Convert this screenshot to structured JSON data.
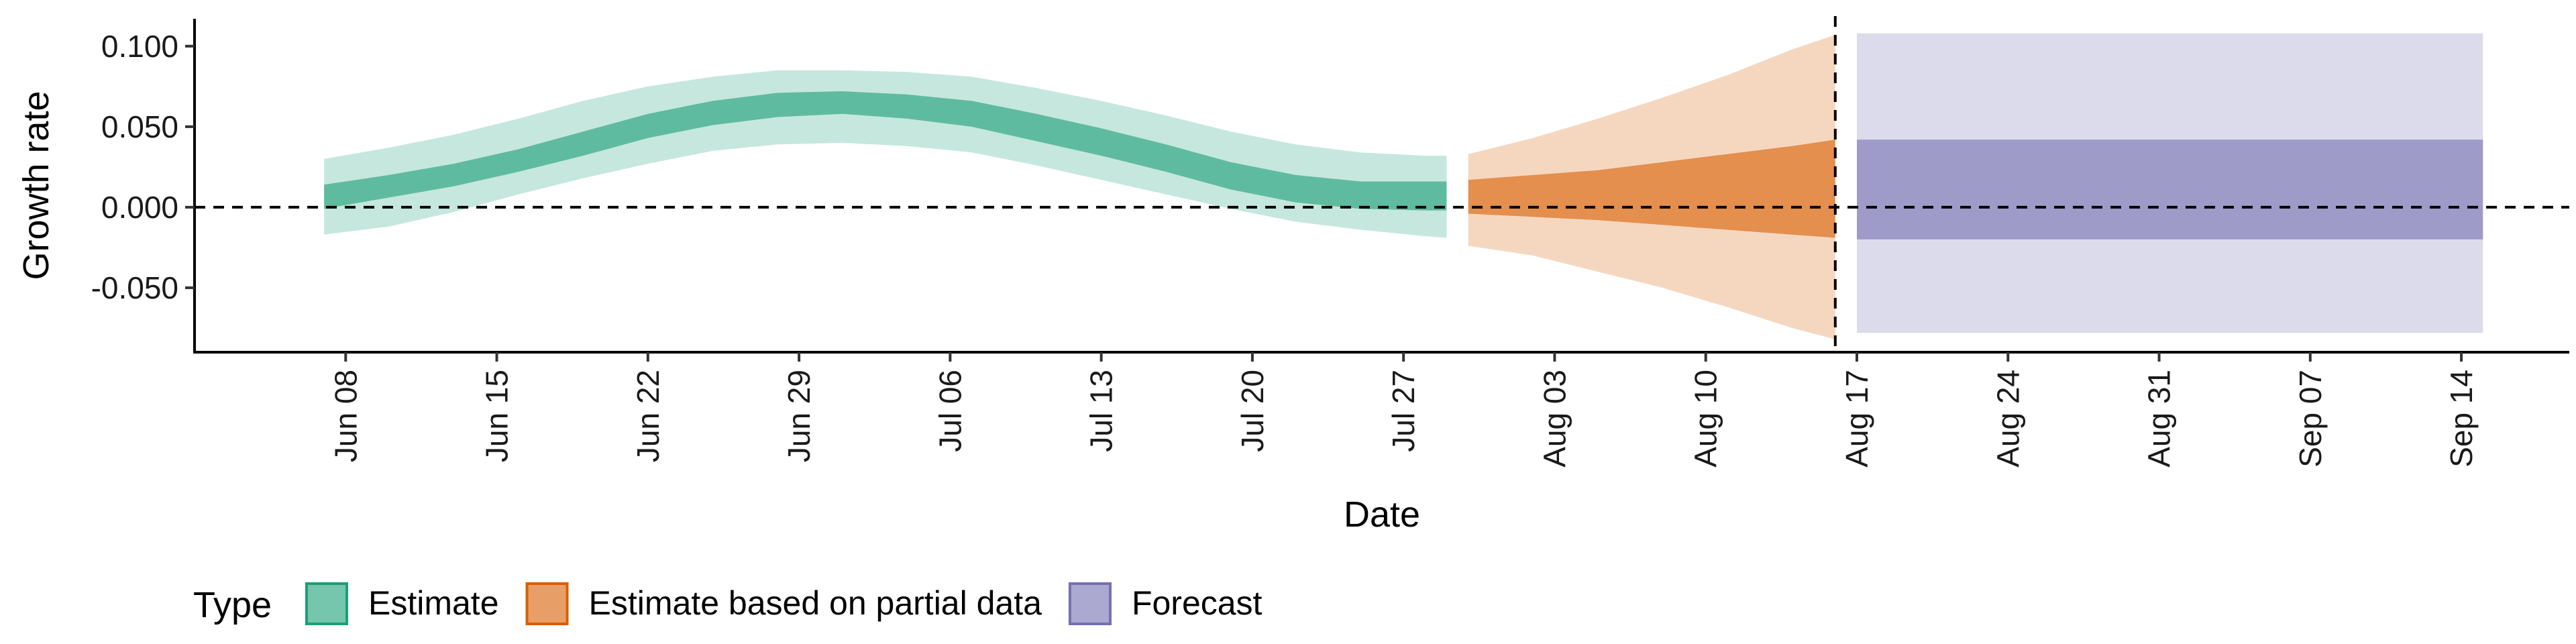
{
  "chart_data": {
    "type": "area",
    "ylabel": "Growth rate",
    "xlabel": "Date",
    "ylim": [
      -0.09,
      0.117
    ],
    "xlim": [
      "2021-06-01",
      "2021-09-19"
    ],
    "grid": false,
    "legend_position": "bottom-left",
    "legend_title": "Type",
    "y_ticks": [
      0.1,
      0.05,
      0.0,
      -0.05
    ],
    "y_tick_labels": [
      "0.100",
      "0.050",
      "0.000",
      "-0.050"
    ],
    "x_ticks": [
      "2021-06-08",
      "2021-06-15",
      "2021-06-22",
      "2021-06-29",
      "2021-07-06",
      "2021-07-13",
      "2021-07-20",
      "2021-07-27",
      "2021-08-03",
      "2021-08-10",
      "2021-08-17",
      "2021-08-24",
      "2021-08-31",
      "2021-09-07",
      "2021-09-14"
    ],
    "x_tick_labels": [
      "Jun 08",
      "Jun 15",
      "Jun 22",
      "Jun 29",
      "Jul 06",
      "Jul 13",
      "Jul 20",
      "Jul 27",
      "Aug 03",
      "Aug 10",
      "Aug 17",
      "Aug 24",
      "Aug 31",
      "Sep 07",
      "Sep 14"
    ],
    "reference_lines": {
      "horizontal_y": 0,
      "vertical_x": "2021-08-16"
    },
    "series": [
      {
        "name": "Estimate",
        "color": "#1b9e77",
        "x": [
          "2021-06-07",
          "2021-06-10",
          "2021-06-13",
          "2021-06-16",
          "2021-06-19",
          "2021-06-22",
          "2021-06-25",
          "2021-06-28",
          "2021-07-01",
          "2021-07-04",
          "2021-07-07",
          "2021-07-10",
          "2021-07-13",
          "2021-07-16",
          "2021-07-19",
          "2021-07-22",
          "2021-07-25",
          "2021-07-28",
          "2021-07-29"
        ],
        "lower_90": [
          -0.017,
          -0.012,
          -0.003,
          0.008,
          0.018,
          0.027,
          0.035,
          0.039,
          0.04,
          0.038,
          0.034,
          0.026,
          0.017,
          0.008,
          -0.001,
          -0.009,
          -0.014,
          -0.018,
          -0.019
        ],
        "upper_90": [
          0.03,
          0.037,
          0.045,
          0.055,
          0.066,
          0.075,
          0.081,
          0.085,
          0.085,
          0.084,
          0.081,
          0.074,
          0.066,
          0.057,
          0.047,
          0.039,
          0.034,
          0.032,
          0.032
        ],
        "lower_50": [
          -0.001,
          0.006,
          0.013,
          0.022,
          0.032,
          0.043,
          0.051,
          0.056,
          0.058,
          0.055,
          0.05,
          0.041,
          0.032,
          0.022,
          0.011,
          0.003,
          -0.001,
          -0.002,
          -0.002
        ],
        "upper_50": [
          0.014,
          0.02,
          0.027,
          0.036,
          0.047,
          0.058,
          0.066,
          0.071,
          0.072,
          0.07,
          0.066,
          0.058,
          0.049,
          0.039,
          0.028,
          0.02,
          0.016,
          0.016,
          0.016
        ]
      },
      {
        "name": "Estimate based on partial data",
        "color": "#d95f02",
        "x": [
          "2021-07-30",
          "2021-08-02",
          "2021-08-05",
          "2021-08-08",
          "2021-08-11",
          "2021-08-14",
          "2021-08-16"
        ],
        "lower_90": [
          -0.024,
          -0.03,
          -0.04,
          -0.05,
          -0.062,
          -0.075,
          -0.082
        ],
        "upper_90": [
          0.033,
          0.043,
          0.055,
          0.068,
          0.082,
          0.098,
          0.107
        ],
        "lower_50": [
          -0.004,
          -0.006,
          -0.008,
          -0.011,
          -0.014,
          -0.017,
          -0.019
        ],
        "upper_50": [
          0.017,
          0.02,
          0.023,
          0.028,
          0.033,
          0.038,
          0.042
        ]
      },
      {
        "name": "Forecast",
        "color": "#7570b3",
        "x": [
          "2021-08-17",
          "2021-09-15"
        ],
        "lower_90": [
          -0.078,
          -0.078
        ],
        "upper_90": [
          0.108,
          0.108
        ],
        "lower_50": [
          -0.02,
          -0.02
        ],
        "upper_50": [
          0.042,
          0.042
        ]
      }
    ]
  }
}
